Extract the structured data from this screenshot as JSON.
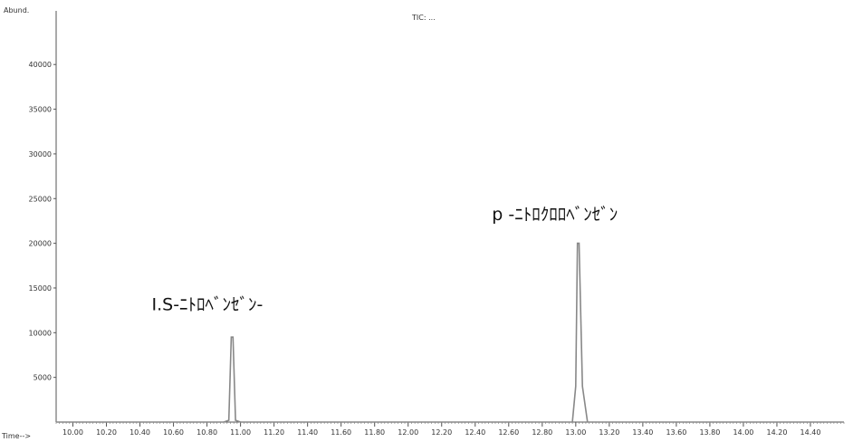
{
  "chart_data": {
    "type": "line",
    "title": "TIC: ...",
    "y_axis_title": "Abund.",
    "x_axis_title": "Time-->",
    "ylim": [
      0,
      46000
    ],
    "y_ticks": [
      5000,
      10000,
      15000,
      20000,
      25000,
      30000,
      35000,
      40000
    ],
    "y_tick_labels": [
      "5000",
      "10000",
      "15000",
      "20000",
      "25000",
      "30000",
      "35000",
      "40000"
    ],
    "xlim": [
      9.9,
      14.6
    ],
    "x_ticks": [
      10.0,
      10.2,
      10.4,
      10.6,
      10.8,
      11.0,
      11.2,
      11.4,
      11.6,
      11.8,
      12.0,
      12.2,
      12.4,
      12.6,
      12.8,
      13.0,
      13.2,
      13.4,
      13.6,
      13.8,
      14.0,
      14.2,
      14.4
    ],
    "x_tick_labels": [
      "10.00",
      "10.20",
      "10.40",
      "10.60",
      "10.80",
      "11.00",
      "11.20",
      "11.40",
      "11.60",
      "11.80",
      "12.00",
      "12.20",
      "12.40",
      "12.60",
      "12.80",
      "13.00",
      "13.20",
      "13.40",
      "13.60",
      "13.80",
      "14.00",
      "14.20",
      "14.40"
    ],
    "grid": false,
    "series": [
      {
        "color": "#888888",
        "x": [
          9.9,
          10.9,
          10.93,
          10.945,
          10.955,
          10.97,
          11.0,
          12.5,
          12.98,
          13.0,
          13.01,
          13.02,
          13.04,
          13.07,
          14.6
        ],
        "y": [
          0,
          0,
          200,
          9500,
          9500,
          200,
          0,
          0,
          0,
          4000,
          20000,
          20000,
          4000,
          0,
          0
        ]
      }
    ],
    "annotations": [
      {
        "text": "I.S-ﾆﾄﾛﾍﾞﾝｾﾞﾝ-",
        "x": 10.47,
        "y": 12500
      },
      {
        "text": "p -ﾆﾄﾛｸﾛﾛﾍﾞﾝｾﾞﾝ",
        "x": 12.5,
        "y": 22600
      }
    ]
  }
}
